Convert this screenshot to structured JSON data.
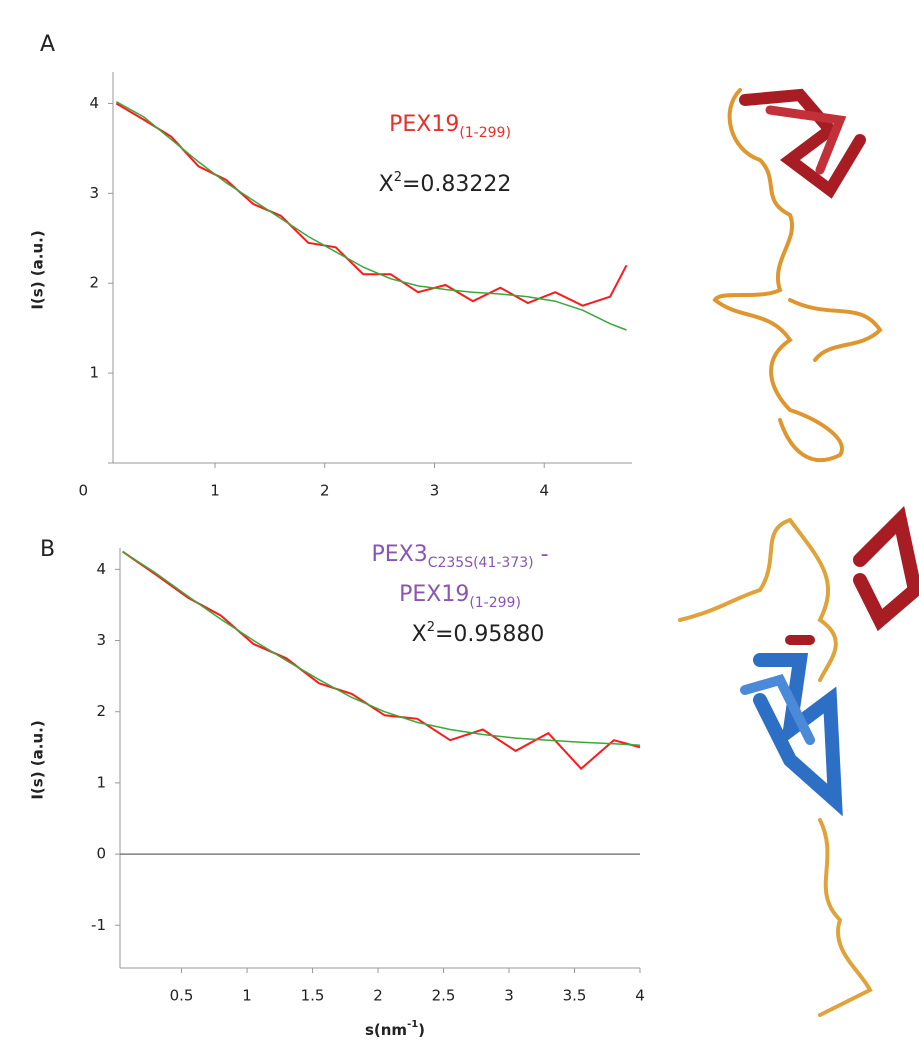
{
  "chart_data": [
    {
      "type": "line",
      "panel": "A",
      "ylabel": "I(s) (a.u.)",
      "annotation": {
        "main": "PEX19",
        "sub": "(1-299)"
      },
      "chi": {
        "symbol": "X",
        "sup": "2",
        "value": "=0.83222"
      },
      "x": [
        0.1,
        0.35,
        0.6,
        0.85,
        1.1,
        1.35,
        1.6,
        1.85,
        2.1,
        2.35,
        2.6,
        2.85,
        3.1,
        3.35,
        3.6,
        3.85,
        4.1,
        4.35,
        4.6,
        4.75
      ],
      "series": [
        {
          "color": "#ff1a1a",
          "values": [
            4.0,
            3.82,
            3.63,
            3.3,
            3.15,
            2.88,
            2.75,
            2.45,
            2.4,
            2.1,
            2.1,
            1.9,
            1.98,
            1.8,
            1.95,
            1.78,
            1.9,
            1.75,
            1.85,
            2.2
          ]
        },
        {
          "color": "#3aa83a",
          "values": [
            4.02,
            3.85,
            3.6,
            3.35,
            3.12,
            2.92,
            2.72,
            2.52,
            2.35,
            2.18,
            2.05,
            1.97,
            1.93,
            1.9,
            1.88,
            1.85,
            1.8,
            1.7,
            1.55,
            1.48
          ]
        }
      ],
      "xlim": [
        0.07,
        4.8
      ],
      "xticks": [
        1,
        2,
        3,
        4
      ],
      "ylim": [
        0,
        4.35
      ],
      "yticks": [
        0,
        1,
        2,
        3,
        4
      ],
      "annotation_color": "#e8302a"
    },
    {
      "type": "line",
      "panel": "B",
      "ylabel": "I(s) (a.u.)",
      "annotation": {
        "main": "PEX3",
        "sub": "C235S(41-373)",
        "dash": " -",
        "line2": "PEX19",
        "sub2": "(1-299)"
      },
      "chi": {
        "symbol": "X",
        "sup": "2",
        "value": "=0.95880"
      },
      "xlabel": {
        "main": "s(nm",
        "sup": "-1",
        "end": ")"
      },
      "x": [
        0.05,
        0.3,
        0.55,
        0.8,
        1.05,
        1.3,
        1.55,
        1.8,
        2.05,
        2.3,
        2.55,
        2.8,
        3.05,
        3.3,
        3.55,
        3.8,
        4.0
      ],
      "series": [
        {
          "color": "#ff1a1a",
          "values": [
            4.25,
            3.93,
            3.6,
            3.35,
            2.95,
            2.75,
            2.4,
            2.25,
            1.95,
            1.9,
            1.6,
            1.75,
            1.45,
            1.7,
            1.2,
            1.6,
            1.5
          ]
        },
        {
          "color": "#3aa83a",
          "values": [
            4.25,
            3.95,
            3.62,
            3.3,
            3.0,
            2.72,
            2.45,
            2.2,
            2.0,
            1.85,
            1.75,
            1.68,
            1.63,
            1.6,
            1.57,
            1.55,
            1.53
          ]
        }
      ],
      "xlim": [
        0.03,
        4.0
      ],
      "xticks": [
        0.5,
        1,
        1.5,
        2,
        2.5,
        3,
        3.5,
        4
      ],
      "ylim": [
        -1.6,
        4.3
      ],
      "yticks": [
        -1,
        0,
        1,
        2,
        3,
        4
      ],
      "zero_line": true,
      "annotation_color": "#8a55b5"
    }
  ]
}
